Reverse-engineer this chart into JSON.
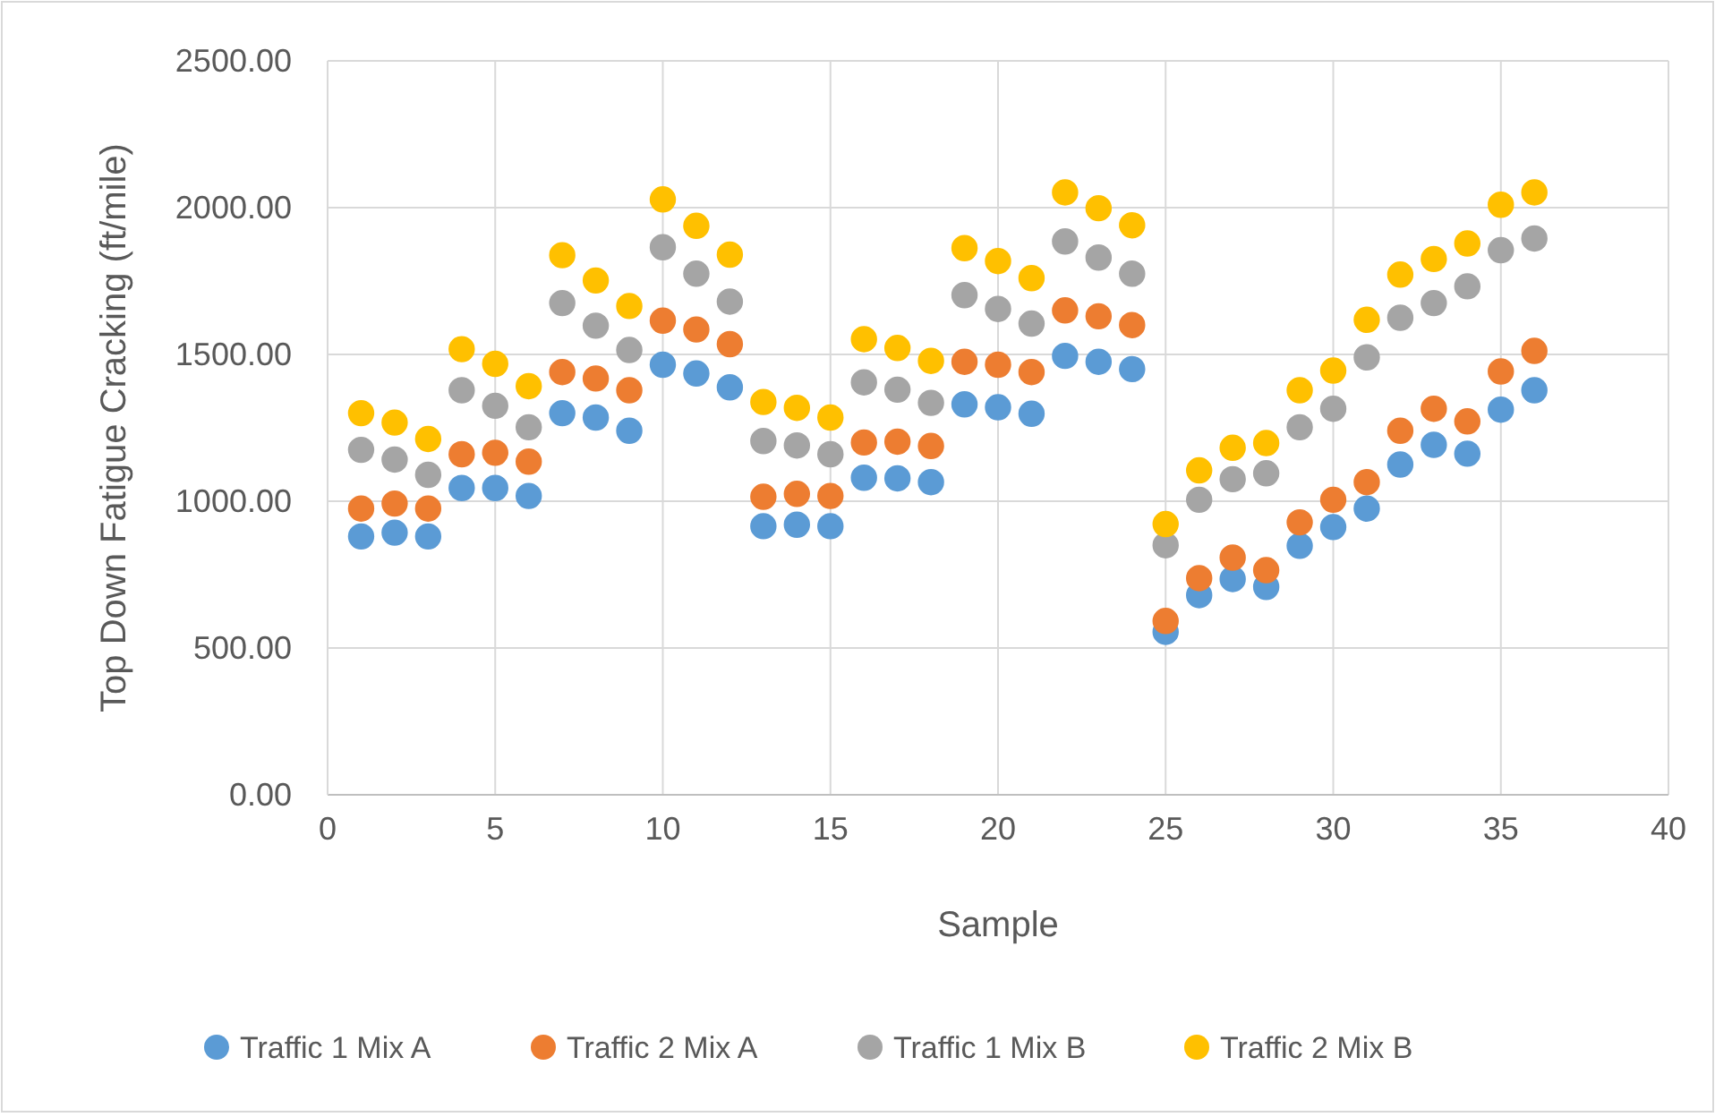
{
  "chart_data": {
    "type": "scatter",
    "xlabel": "Sample",
    "ylabel": "Top Down Fatigue Cracking (ft/mile)",
    "x": [
      1,
      2,
      3,
      4,
      5,
      6,
      7,
      8,
      9,
      10,
      11,
      12,
      13,
      14,
      15,
      16,
      17,
      18,
      19,
      20,
      21,
      22,
      23,
      24,
      25,
      26,
      27,
      28,
      29,
      30,
      31,
      32,
      33,
      34,
      35,
      36
    ],
    "series": [
      {
        "name": "Traffic 1 Mix A",
        "color": "#5b9bd5",
        "values": [
          880,
          893,
          880,
          1045,
          1045,
          1018,
          1300,
          1285,
          1240,
          1465,
          1435,
          1388,
          915,
          920,
          915,
          1080,
          1078,
          1065,
          1330,
          1320,
          1298,
          1495,
          1475,
          1450,
          555,
          680,
          735,
          708,
          848,
          912,
          975,
          1125,
          1192,
          1162,
          1312,
          1378
        ]
      },
      {
        "name": "Traffic 2 Mix A",
        "color": "#ed7d31",
        "values": [
          975,
          992,
          975,
          1160,
          1165,
          1135,
          1440,
          1418,
          1378,
          1615,
          1585,
          1535,
          1015,
          1025,
          1018,
          1200,
          1203,
          1188,
          1475,
          1465,
          1440,
          1650,
          1630,
          1600,
          592,
          738,
          808,
          765,
          928,
          1005,
          1065,
          1240,
          1315,
          1272,
          1442,
          1512
        ]
      },
      {
        "name": "Traffic 1 Mix B",
        "color": "#a5a5a5",
        "values": [
          1175,
          1142,
          1090,
          1378,
          1325,
          1252,
          1675,
          1598,
          1515,
          1865,
          1775,
          1680,
          1205,
          1190,
          1160,
          1405,
          1380,
          1335,
          1702,
          1655,
          1605,
          1885,
          1830,
          1775,
          850,
          1005,
          1075,
          1095,
          1252,
          1315,
          1490,
          1625,
          1675,
          1732,
          1855,
          1895
        ]
      },
      {
        "name": "Traffic 2 Mix B",
        "color": "#ffc000",
        "values": [
          1300,
          1268,
          1212,
          1518,
          1468,
          1392,
          1838,
          1752,
          1665,
          2028,
          1938,
          1840,
          1338,
          1318,
          1285,
          1552,
          1522,
          1478,
          1862,
          1818,
          1760,
          2052,
          1998,
          1940,
          922,
          1105,
          1182,
          1198,
          1378,
          1445,
          1618,
          1772,
          1825,
          1878,
          2010,
          2052
        ]
      }
    ],
    "xlim": [
      0,
      40
    ],
    "xticks": [
      0,
      5,
      10,
      15,
      20,
      25,
      30,
      35,
      40
    ],
    "ylim": [
      0,
      2500
    ],
    "yticks": [
      {
        "value": 0,
        "label": "0.00"
      },
      {
        "value": 500,
        "label": "500.00"
      },
      {
        "value": 1000,
        "label": "1000.00"
      },
      {
        "value": 1500,
        "label": "1500.00"
      },
      {
        "value": 2000,
        "label": "2000.00"
      },
      {
        "value": 2500,
        "label": "2500.00"
      }
    ],
    "grid": true,
    "legend": "bottom",
    "marker": "circle"
  }
}
